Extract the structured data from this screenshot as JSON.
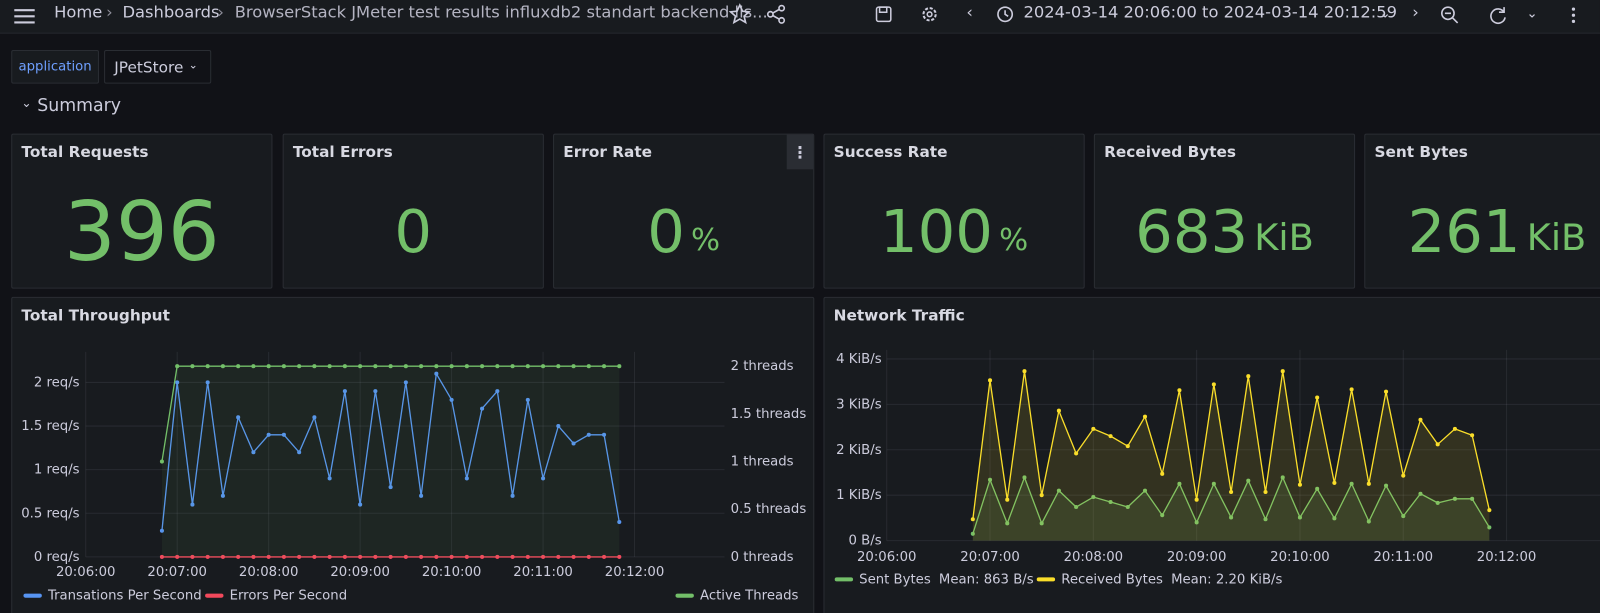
{
  "header": {
    "home": "Home",
    "dashboards": "Dashboards",
    "title": "BrowserStack JMeter test results influxdb2 standart backend lis...",
    "time_range": "2024-03-14 20:06:00 to 2024-03-14 20:12:59"
  },
  "variables": [
    {
      "label": "application",
      "value": "JPetStore"
    }
  ],
  "row": {
    "title": "Summary"
  },
  "stats": [
    {
      "title": "Total Requests",
      "value": 396
    },
    {
      "title": "Total Errors",
      "value": 0
    },
    {
      "title": "Error Rate",
      "value": 0,
      "unit": "%"
    },
    {
      "title": "Success Rate",
      "value": 100,
      "unit": "%"
    },
    {
      "title": "Received Bytes",
      "value": 683,
      "unit": "KiB"
    },
    {
      "title": "Sent Bytes",
      "value": 261,
      "unit": "KiB"
    }
  ],
  "chart_data": [
    {
      "type": "line",
      "title": "Total Throughput",
      "x": [
        "20:06:50",
        "20:07:00",
        "20:07:10",
        "20:07:20",
        "20:07:30",
        "20:07:40",
        "20:07:50",
        "20:08:00",
        "20:08:10",
        "20:08:20",
        "20:08:30",
        "20:08:40",
        "20:08:50",
        "20:09:00",
        "20:09:10",
        "20:09:20",
        "20:09:30",
        "20:09:40",
        "20:09:50",
        "20:10:00",
        "20:10:10",
        "20:10:20",
        "20:10:30",
        "20:10:40",
        "20:10:50",
        "20:11:00",
        "20:11:10",
        "20:11:20",
        "20:11:30",
        "20:11:40",
        "20:11:50"
      ],
      "xlim": [
        "20:06:00",
        "20:12:59"
      ],
      "xticks": [
        "20:06:00",
        "20:07:00",
        "20:08:00",
        "20:09:00",
        "20:10:00",
        "20:11:00",
        "20:12:00"
      ],
      "ylim": [
        0,
        2.35
      ],
      "yticks": [
        {
          "value": 0,
          "label": "0 req/s"
        },
        {
          "value": 0.5,
          "label": "0.5 req/s"
        },
        {
          "value": 1,
          "label": "1 req/s"
        },
        {
          "value": 1.5,
          "label": "1.5 req/s"
        },
        {
          "value": 2,
          "label": "2 req/s"
        }
      ],
      "y2lim": [
        0,
        2.15
      ],
      "y2ticks": [
        {
          "value": 0,
          "label": "0 threads"
        },
        {
          "value": 0.5,
          "label": "0.5 threads"
        },
        {
          "value": 1,
          "label": "1 threads"
        },
        {
          "value": 1.5,
          "label": "1.5 threads"
        },
        {
          "value": 2,
          "label": "2 threads"
        }
      ],
      "grid": true,
      "legend": "bottom",
      "series": [
        {
          "name": "Transations Per Second",
          "color": "#5794f2",
          "values": [
            0.3,
            2.0,
            0.6,
            2.0,
            0.7,
            1.6,
            1.2,
            1.4,
            1.4,
            1.2,
            1.6,
            0.9,
            1.9,
            0.6,
            1.9,
            0.8,
            2.0,
            0.7,
            2.1,
            1.8,
            0.9,
            1.7,
            1.9,
            0.7,
            1.8,
            0.9,
            1.5,
            1.3,
            1.4,
            1.4,
            0.4
          ]
        },
        {
          "name": "Errors Per Second",
          "color": "#f2495c",
          "values": [
            0,
            0,
            0,
            0,
            0,
            0,
            0,
            0,
            0,
            0,
            0,
            0,
            0,
            0,
            0,
            0,
            0,
            0,
            0,
            0,
            0,
            0,
            0,
            0,
            0,
            0,
            0,
            0,
            0,
            0,
            0
          ]
        },
        {
          "name": "Active Threads",
          "color": "#73bf69",
          "axis": "y2",
          "fill": true,
          "values": [
            1,
            2,
            2,
            2,
            2,
            2,
            2,
            2,
            2,
            2,
            2,
            2,
            2,
            2,
            2,
            2,
            2,
            2,
            2,
            2,
            2,
            2,
            2,
            2,
            2,
            2,
            2,
            2,
            2,
            2,
            2
          ]
        }
      ]
    },
    {
      "type": "line",
      "title": "Network Traffic",
      "x": [
        "20:06:50",
        "20:07:00",
        "20:07:10",
        "20:07:20",
        "20:07:30",
        "20:07:40",
        "20:07:50",
        "20:08:00",
        "20:08:10",
        "20:08:20",
        "20:08:30",
        "20:08:40",
        "20:08:50",
        "20:09:00",
        "20:09:10",
        "20:09:20",
        "20:09:30",
        "20:09:40",
        "20:09:50",
        "20:10:00",
        "20:10:10",
        "20:10:20",
        "20:10:30",
        "20:10:40",
        "20:10:50",
        "20:11:00",
        "20:11:10",
        "20:11:20",
        "20:11:30",
        "20:11:40",
        "20:11:50"
      ],
      "xlim": [
        "20:06:00",
        "20:12:59"
      ],
      "xticks": [
        "20:06:00",
        "20:07:00",
        "20:08:00",
        "20:09:00",
        "20:10:00",
        "20:11:00",
        "20:12:00"
      ],
      "ylim": [
        0,
        4.2
      ],
      "yticks": [
        {
          "value": 0,
          "label": "0 B/s"
        },
        {
          "value": 1,
          "label": "1 KiB/s"
        },
        {
          "value": 2,
          "label": "2 KiB/s"
        },
        {
          "value": 3,
          "label": "3 KiB/s"
        },
        {
          "value": 4,
          "label": "4 KiB/s"
        }
      ],
      "grid": true,
      "legend": "bottom",
      "series": [
        {
          "name": "Sent Bytes",
          "color": "#73bf69",
          "fill": true,
          "legend_value": "Mean: 863 B/s",
          "values": [
            0.15,
            1.34,
            0.38,
            1.39,
            0.38,
            1.1,
            0.74,
            0.96,
            0.85,
            0.74,
            1.1,
            0.56,
            1.25,
            0.4,
            1.25,
            0.51,
            1.32,
            0.47,
            1.39,
            0.51,
            1.14,
            0.49,
            1.25,
            0.42,
            1.21,
            0.54,
            1.03,
            0.83,
            0.92,
            0.92,
            0.29
          ]
        },
        {
          "name": "Received Bytes",
          "color": "#fade2a",
          "fill": true,
          "legend_value": "Mean: 2.20 KiB/s",
          "values": [
            0.47,
            3.53,
            0.9,
            3.73,
            1.0,
            2.86,
            1.92,
            2.46,
            2.3,
            2.08,
            2.73,
            1.47,
            3.31,
            0.9,
            3.44,
            1.07,
            3.62,
            1.07,
            3.73,
            1.23,
            3.15,
            1.27,
            3.33,
            1.25,
            3.28,
            1.43,
            2.66,
            2.12,
            2.46,
            2.32,
            0.67
          ]
        }
      ]
    }
  ]
}
